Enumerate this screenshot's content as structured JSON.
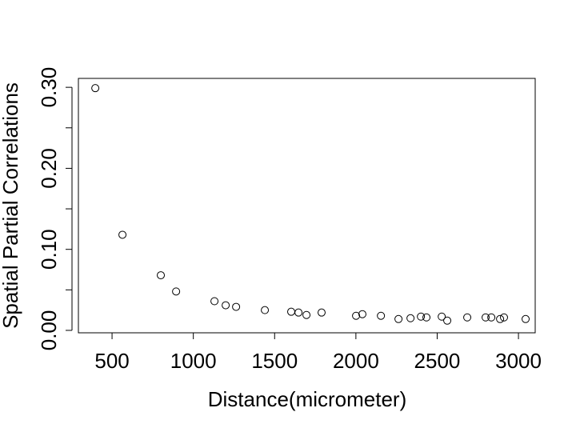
{
  "chart_data": {
    "type": "scatter",
    "x_label": "Distance(micrometer)",
    "y_label": "Spatial Partial Correlations",
    "x": [
      397,
      564,
      800,
      894,
      1130,
      1199,
      1263,
      1440,
      1602,
      1647,
      1696,
      1789,
      2001,
      2040,
      2154,
      2262,
      2336,
      2400,
      2434,
      2528,
      2562,
      2685,
      2798,
      2833,
      2887,
      2911,
      3044
    ],
    "values": [
      0.299,
      0.118,
      0.068,
      0.048,
      0.036,
      0.031,
      0.029,
      0.025,
      0.023,
      0.022,
      0.019,
      0.022,
      0.018,
      0.02,
      0.018,
      0.014,
      0.015,
      0.017,
      0.016,
      0.017,
      0.012,
      0.016,
      0.016,
      0.016,
      0.014,
      0.016,
      0.014
    ],
    "color": "#000000",
    "xlim": [
      293,
      3103
    ],
    "ylim": [
      -0.003,
      0.311
    ],
    "xticks": [
      500,
      1000,
      1500,
      2000,
      2500,
      3000
    ],
    "yticks": [
      {
        "value": 0,
        "label": "0.00"
      },
      {
        "value": 0.1,
        "label": "0.10"
      },
      {
        "value": 0.2,
        "label": "0.20"
      },
      {
        "value": 0.3,
        "label": "0.30"
      }
    ],
    "yminor_ticks": [
      0.05,
      0.15,
      0.25
    ]
  }
}
